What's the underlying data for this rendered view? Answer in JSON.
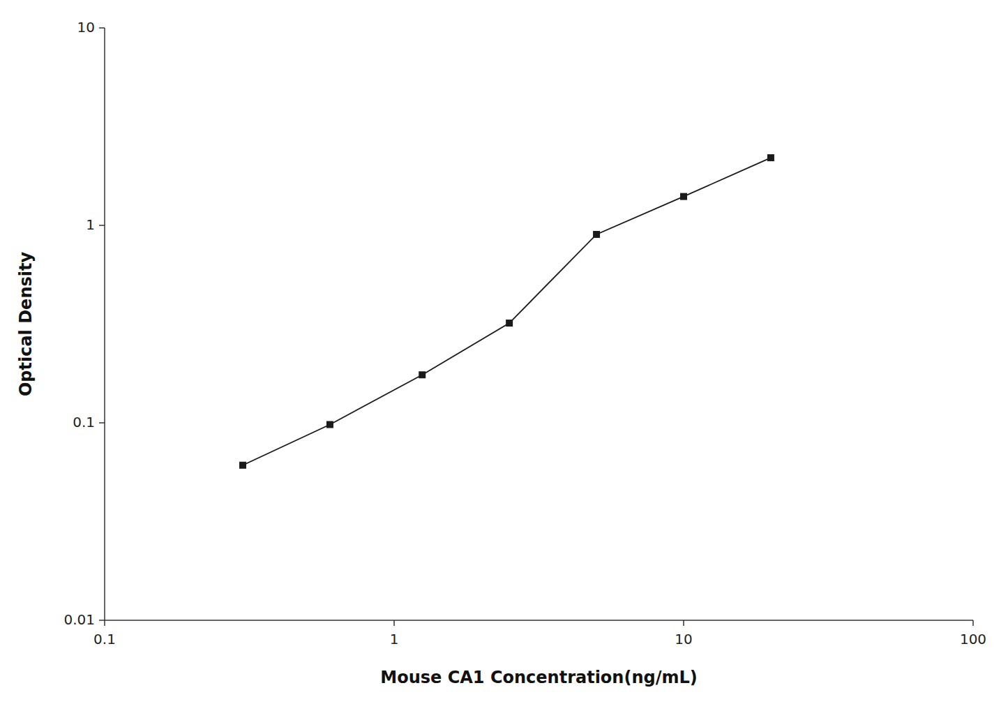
{
  "chart_data": {
    "type": "line",
    "xlabel": "Mouse CA1 Concentration(ng/mL)",
    "ylabel": "Optical Density",
    "x": [
      0.3,
      0.6,
      1.25,
      2.5,
      5.0,
      10.0,
      20.0
    ],
    "values": [
      0.061,
      0.098,
      0.175,
      0.32,
      0.9,
      1.4,
      2.2
    ],
    "color": "#1a1a1a",
    "marker": "square",
    "log": true,
    "grid": false,
    "xlim": [
      0.1,
      100
    ],
    "ylim": [
      0.01,
      10
    ],
    "xticks": [
      0.1,
      1,
      10,
      100
    ],
    "yticks": [
      0.01,
      0.1,
      1,
      10
    ]
  }
}
